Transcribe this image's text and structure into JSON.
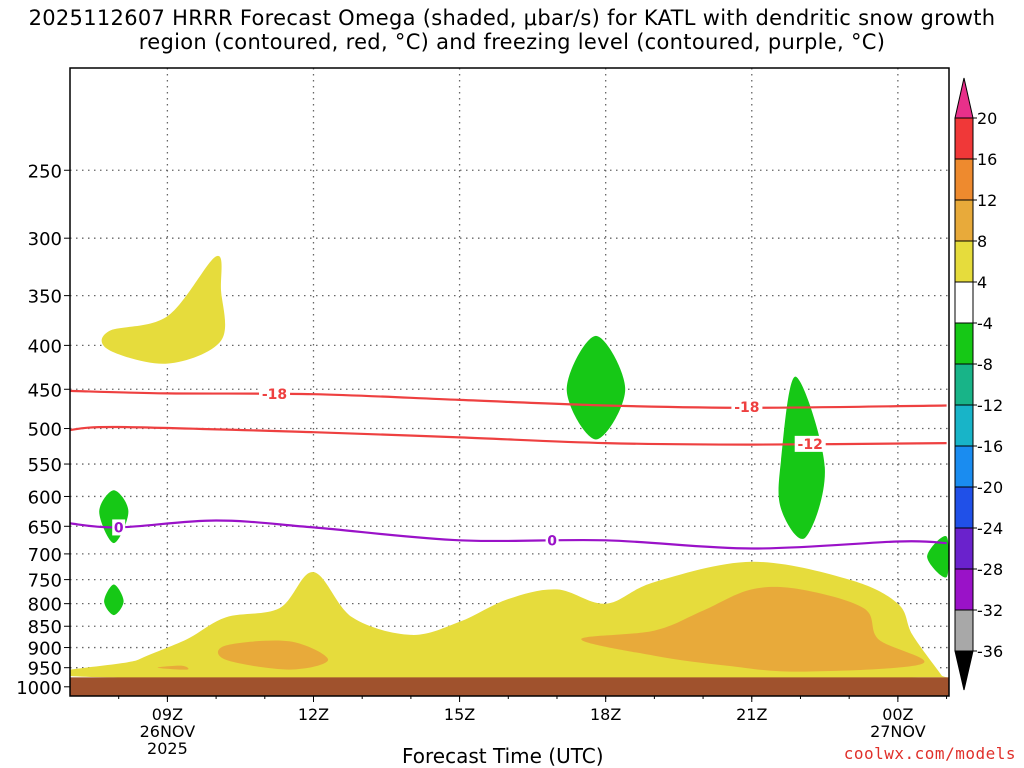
{
  "chart_data": {
    "type": "heatmap",
    "title": "2025112607 HRRR Forecast Omega (shaded, μbar/s) for KATL with dendritic snow growth region (contoured, red, °C) and freezing level (contoured, purple, °C)",
    "xlabel": "Forecast Time (UTC)",
    "ylabel": "",
    "x_axis": {
      "range": [
        "2025-11-26T07Z",
        "2025-11-27T01Z"
      ],
      "ticks": [
        {
          "t": 9,
          "label": "09Z",
          "sub1": "26NOV",
          "sub2": "2025"
        },
        {
          "t": 12,
          "label": "12Z",
          "sub1": "",
          "sub2": ""
        },
        {
          "t": 15,
          "label": "15Z",
          "sub1": "",
          "sub2": ""
        },
        {
          "t": 18,
          "label": "18Z",
          "sub1": "",
          "sub2": ""
        },
        {
          "t": 21,
          "label": "21Z",
          "sub1": "",
          "sub2": ""
        },
        {
          "t": 24,
          "label": "00Z",
          "sub1": "27NOV",
          "sub2": ""
        }
      ]
    },
    "y_axis": {
      "scale": "log-pressure",
      "range": [
        1025,
        190
      ],
      "ticks": [
        250,
        300,
        350,
        400,
        450,
        500,
        550,
        600,
        650,
        700,
        750,
        800,
        850,
        900,
        950,
        1000
      ]
    },
    "grid": true,
    "colorbar": {
      "units": "μbar/s",
      "labels": [
        "20",
        "16",
        "12",
        "8",
        "4",
        "-4",
        "-8",
        "-12",
        "-16",
        "-20",
        "-24",
        "-28",
        "-32",
        "-36"
      ],
      "colors": [
        "#e8308a",
        "#f03838",
        "#ee8a2e",
        "#e8aa3a",
        "#e6dc3c",
        "#ffffff",
        "#16c816",
        "#18b488",
        "#18b4c8",
        "#1a8cf0",
        "#2050e8",
        "#6a22cc",
        "#9a12c8",
        "#a8a8a8",
        "#000000"
      ]
    },
    "series": [
      {
        "value": -18,
        "color": "#ee4040",
        "label": "-18",
        "points": [
          [
            7,
            452
          ],
          [
            9,
            455
          ],
          [
            12,
            456
          ],
          [
            15,
            463
          ],
          [
            18,
            470
          ],
          [
            21,
            473
          ],
          [
            25,
            470
          ]
        ]
      },
      {
        "value": -12,
        "color": "#ee4040",
        "label": "-12",
        "points": [
          [
            7,
            502
          ],
          [
            8,
            498
          ],
          [
            12,
            505
          ],
          [
            15,
            512
          ],
          [
            18,
            520
          ],
          [
            21,
            522
          ],
          [
            25,
            520
          ]
        ]
      },
      {
        "value": 0,
        "color": "#9a12c8",
        "label": "0",
        "points": [
          [
            7,
            645
          ],
          [
            8,
            652
          ],
          [
            10,
            640
          ],
          [
            12,
            652
          ],
          [
            15,
            675
          ],
          [
            18,
            675
          ],
          [
            21,
            690
          ],
          [
            24,
            677
          ],
          [
            25,
            680
          ]
        ]
      }
    ],
    "shaded_regions": [
      {
        "omega_class": "4",
        "color": "#e6dc3c",
        "points": [
          [
            7.8,
            385
          ],
          [
            9,
            370
          ],
          [
            10,
            315
          ],
          [
            10.1,
            345
          ],
          [
            10.1,
            395
          ],
          [
            9,
            420
          ],
          [
            7.8,
            405
          ]
        ]
      },
      {
        "omega_class": "4",
        "color": "#e6dc3c",
        "points": [
          [
            7.8,
            975
          ],
          [
            8.4,
            930
          ],
          [
            9.4,
            880
          ],
          [
            10.2,
            830
          ],
          [
            11.3,
            810
          ],
          [
            12,
            735
          ],
          [
            12.8,
            830
          ],
          [
            14,
            870
          ],
          [
            15,
            840
          ],
          [
            16,
            790
          ],
          [
            17,
            770
          ],
          [
            18,
            800
          ],
          [
            19,
            755
          ],
          [
            21,
            715
          ],
          [
            23,
            750
          ],
          [
            24,
            800
          ],
          [
            24.3,
            870
          ],
          [
            24.9,
            970
          ],
          [
            24.9,
            975
          ]
        ]
      },
      {
        "omega_class": "8",
        "color": "#e8aa3a",
        "points": [
          [
            10.2,
            895
          ],
          [
            11.5,
            885
          ],
          [
            12.3,
            930
          ],
          [
            11.5,
            955
          ],
          [
            10.2,
            930
          ]
        ]
      },
      {
        "omega_class": "8",
        "color": "#e8aa3a",
        "points": [
          [
            17.5,
            880
          ],
          [
            19,
            860
          ],
          [
            20,
            815
          ],
          [
            21,
            770
          ],
          [
            22,
            770
          ],
          [
            23.3,
            810
          ],
          [
            23.6,
            880
          ],
          [
            24.5,
            940
          ],
          [
            22,
            960
          ],
          [
            20.5,
            945
          ],
          [
            19,
            920
          ]
        ]
      },
      {
        "omega_class": "8",
        "color": "#e8aa3a",
        "points": [
          [
            8.8,
            950
          ],
          [
            9.3,
            945
          ],
          [
            9.4,
            955
          ]
        ]
      },
      {
        "omega_class": "-4",
        "color": "#16c816",
        "points": [
          [
            7.9,
            590
          ],
          [
            8.2,
            625
          ],
          [
            7.9,
            680
          ],
          [
            7.6,
            625
          ]
        ]
      },
      {
        "omega_class": "-4",
        "color": "#16c816",
        "points": [
          [
            7.9,
            760
          ],
          [
            8.1,
            795
          ],
          [
            7.9,
            825
          ],
          [
            7.7,
            795
          ]
        ]
      },
      {
        "omega_class": "-4",
        "color": "#16c816",
        "points": [
          [
            17.8,
            390
          ],
          [
            18.4,
            450
          ],
          [
            17.8,
            515
          ],
          [
            17.2,
            450
          ]
        ]
      },
      {
        "omega_class": "-4",
        "color": "#16c816",
        "points": [
          [
            21.9,
            435
          ],
          [
            22.5,
            555
          ],
          [
            22.1,
            670
          ],
          [
            21.6,
            620
          ],
          [
            21.6,
            545
          ]
        ]
      },
      {
        "omega_class": "-4",
        "color": "#16c816",
        "points": [
          [
            25,
            668
          ],
          [
            24.6,
            705
          ],
          [
            25,
            745
          ]
        ]
      }
    ],
    "contour_labels": [
      {
        "text": "-18",
        "t": 11.2,
        "p": 456,
        "color": "#ee4040"
      },
      {
        "text": "-18",
        "t": 20.9,
        "p": 472,
        "color": "#ee4040"
      },
      {
        "text": "-12",
        "t": 22.2,
        "p": 521,
        "color": "#ee4040"
      },
      {
        "text": "0",
        "t": 8.0,
        "p": 652,
        "color": "#9a12c8"
      },
      {
        "text": "0",
        "t": 16.9,
        "p": 675,
        "color": "#9a12c8"
      }
    ],
    "surface": {
      "color": "#a0522d",
      "p_top": 975
    }
  },
  "credit": "coolwx.com/models"
}
